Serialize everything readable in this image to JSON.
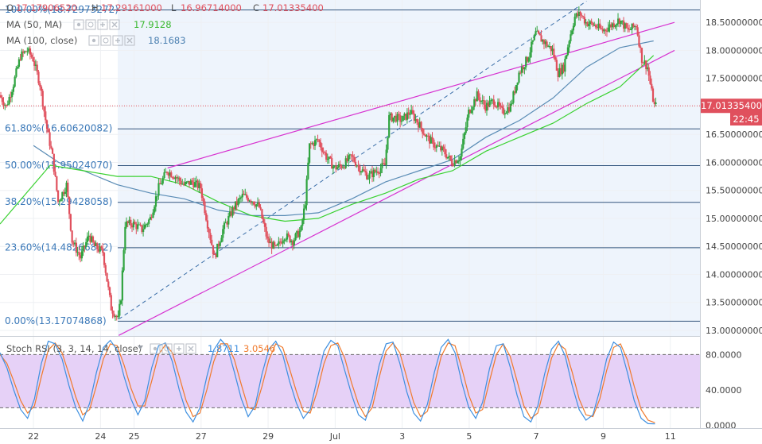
{
  "header": {
    "ohlc_prefix": "O",
    "open": "17.17906520",
    "high_prefix": "H",
    "high": "17.29161000",
    "low_prefix": "L",
    "low": "16.96714000",
    "close_prefix": "C",
    "close": "17.01335400",
    "ma50_label": "MA (50, MA)",
    "ma50_value": "17.9128",
    "ma100_label": "MA (100, close)",
    "ma100_value": "18.1683"
  },
  "fib_levels": [
    {
      "label": "100.00%(18.72973272)",
      "value": 18.7297
    },
    {
      "label": "61.80%(16.60620082)",
      "value": 16.6062
    },
    {
      "label": "50.00%(15.95024070)",
      "value": 15.9502
    },
    {
      "label": "38.20%(15.29428058)",
      "value": 15.2943
    },
    {
      "label": "23.60%(14.48266812)",
      "value": 14.4827
    },
    {
      "label": "0.00%(13.17074868)",
      "value": 13.1707
    }
  ],
  "price_badge": {
    "value": "17.01335400",
    "time": "22:45"
  },
  "rsi_header": {
    "label": "Stoch RSI (3, 3, 14, 14, close)",
    "k_value": "1.8711",
    "d_value": "3.0546"
  },
  "colors": {
    "up": "#2fa33f",
    "down": "#e0505d",
    "ma50": "#39d12f",
    "ma100": "#5a8cb5",
    "channel": "#d732d0",
    "fib": "#33557d",
    "rsi_k": "#3d8fe0",
    "rsi_d": "#f07a2c",
    "rsi_band": "#e6d1f7"
  },
  "chart_data": [
    {
      "type": "candlestick",
      "title": "",
      "ylim": [
        12.9,
        18.9
      ],
      "y_ticks": [
        "18.50000000",
        "18.00000000",
        "17.50000000",
        "17.00000000",
        "16.50000000",
        "16.00000000",
        "15.50000000",
        "15.00000000",
        "14.50000000",
        "14.00000000",
        "13.50000000",
        "13.00000000"
      ],
      "x_ticks": [
        "22",
        "24",
        "25",
        "27",
        "29",
        "Jul",
        "3",
        "5",
        "7",
        "9",
        "11"
      ],
      "x_tick_dates": [
        "2018-06-22",
        "2018-06-24",
        "2018-06-25",
        "2018-06-27",
        "2018-06-29",
        "2018-07-01",
        "2018-07-03",
        "2018-07-05",
        "2018-07-07",
        "2018-07-09",
        "2018-07-11"
      ],
      "x_domain": [
        "2018-06-21T00:00",
        "2018-07-11T03:00"
      ],
      "price_anchors": [
        [
          "2018-06-21T00:00",
          17.2
        ],
        [
          "2018-06-21T05:00",
          17.0
        ],
        [
          "2018-06-21T10:00",
          17.4
        ],
        [
          "2018-06-21T15:00",
          17.9
        ],
        [
          "2018-06-21T20:00",
          18.0
        ],
        [
          "2018-06-22T00:00",
          17.85
        ],
        [
          "2018-06-22T05:00",
          17.4
        ],
        [
          "2018-06-22T10:00",
          16.6
        ],
        [
          "2018-06-22T14:00",
          16.1
        ],
        [
          "2018-06-22T18:00",
          15.3
        ],
        [
          "2018-06-23T00:00",
          15.6
        ],
        [
          "2018-06-23T04:00",
          14.6
        ],
        [
          "2018-06-23T10:00",
          14.3
        ],
        [
          "2018-06-23T16:00",
          14.7
        ],
        [
          "2018-06-23T20:00",
          14.5
        ],
        [
          "2018-06-24T02:00",
          14.4
        ],
        [
          "2018-06-24T08:00",
          13.4
        ],
        [
          "2018-06-24T13:00",
          13.2
        ],
        [
          "2018-06-24T15:00",
          13.6
        ],
        [
          "2018-06-24T18:00",
          14.9
        ],
        [
          "2018-06-25T00:00",
          14.9
        ],
        [
          "2018-06-25T06:00",
          14.8
        ],
        [
          "2018-06-25T12:00",
          15.0
        ],
        [
          "2018-06-25T18:00",
          15.55
        ],
        [
          "2018-06-26T00:00",
          15.85
        ],
        [
          "2018-06-26T06:00",
          15.75
        ],
        [
          "2018-06-26T12:00",
          15.6
        ],
        [
          "2018-06-26T18:00",
          15.65
        ],
        [
          "2018-06-27T00:00",
          15.55
        ],
        [
          "2018-06-27T05:00",
          14.9
        ],
        [
          "2018-06-27T10:00",
          14.3
        ],
        [
          "2018-06-27T16:00",
          14.8
        ],
        [
          "2018-06-28T00:00",
          15.2
        ],
        [
          "2018-06-28T06:00",
          15.4
        ],
        [
          "2018-06-28T12:00",
          15.35
        ],
        [
          "2018-06-28T18:00",
          15.2
        ],
        [
          "2018-06-29T00:00",
          14.6
        ],
        [
          "2018-06-29T06:00",
          14.45
        ],
        [
          "2018-06-29T12:00",
          14.7
        ],
        [
          "2018-06-29T18:00",
          14.6
        ],
        [
          "2018-06-30T00:00",
          14.8
        ],
        [
          "2018-06-30T03:00",
          15.3
        ],
        [
          "2018-06-30T06:00",
          16.3
        ],
        [
          "2018-06-30T12:00",
          16.4
        ],
        [
          "2018-06-30T18:00",
          16.1
        ],
        [
          "2018-07-01T00:00",
          15.9
        ],
        [
          "2018-07-01T06:00",
          15.95
        ],
        [
          "2018-07-01T12:00",
          16.1
        ],
        [
          "2018-07-01T18:00",
          15.9
        ],
        [
          "2018-07-02T00:00",
          15.75
        ],
        [
          "2018-07-02T06:00",
          15.85
        ],
        [
          "2018-07-02T12:00",
          15.95
        ],
        [
          "2018-07-02T15:00",
          16.8
        ],
        [
          "2018-07-02T20:00",
          16.8
        ],
        [
          "2018-07-03T00:00",
          16.75
        ],
        [
          "2018-07-03T06:00",
          16.9
        ],
        [
          "2018-07-03T12:00",
          16.7
        ],
        [
          "2018-07-03T18:00",
          16.45
        ],
        [
          "2018-07-04T00:00",
          16.3
        ],
        [
          "2018-07-04T06:00",
          16.2
        ],
        [
          "2018-07-04T12:00",
          16.0
        ],
        [
          "2018-07-04T18:00",
          16.1
        ],
        [
          "2018-07-05T00:00",
          16.9
        ],
        [
          "2018-07-05T06:00",
          17.2
        ],
        [
          "2018-07-05T12:00",
          17.0
        ],
        [
          "2018-07-05T18:00",
          17.1
        ],
        [
          "2018-07-06T00:00",
          16.9
        ],
        [
          "2018-07-06T06:00",
          17.0
        ],
        [
          "2018-07-06T12:00",
          17.6
        ],
        [
          "2018-07-06T18:00",
          17.85
        ],
        [
          "2018-07-07T00:00",
          18.3
        ],
        [
          "2018-07-07T06:00",
          18.15
        ],
        [
          "2018-07-07T12:00",
          18.0
        ],
        [
          "2018-07-07T16:00",
          17.6
        ],
        [
          "2018-07-07T20:00",
          17.7
        ],
        [
          "2018-07-08T00:00",
          18.2
        ],
        [
          "2018-07-08T04:00",
          18.6
        ],
        [
          "2018-07-08T08:00",
          18.65
        ],
        [
          "2018-07-08T12:00",
          18.5
        ],
        [
          "2018-07-08T18:00",
          18.45
        ],
        [
          "2018-07-09T00:00",
          18.35
        ],
        [
          "2018-07-09T06:00",
          18.45
        ],
        [
          "2018-07-09T12:00",
          18.55
        ],
        [
          "2018-07-09T18:00",
          18.35
        ],
        [
          "2018-07-10T00:00",
          18.45
        ],
        [
          "2018-07-10T04:00",
          17.85
        ],
        [
          "2018-07-10T08:00",
          17.7
        ],
        [
          "2018-07-10T11:00",
          17.25
        ],
        [
          "2018-07-10T13:00",
          17.01
        ]
      ],
      "channel_upper": [
        [
          "2018-06-26T00:00",
          15.9
        ],
        [
          "2018-07-11T03:00",
          18.5
        ]
      ],
      "channel_lower": [
        [
          "2018-06-24T13:00",
          12.91
        ],
        [
          "2018-07-11T03:00",
          18.0
        ]
      ],
      "channel_mid_dashed": [
        [
          "2018-06-24T13:00",
          13.2
        ],
        [
          "2018-07-08T12:00",
          18.88
        ]
      ],
      "ma50": [
        [
          "2018-06-21T00:00",
          14.9
        ],
        [
          "2018-06-22T00:00",
          15.6
        ],
        [
          "2018-06-22T12:00",
          15.95
        ],
        [
          "2018-06-23T12:00",
          15.85
        ],
        [
          "2018-06-24T12:00",
          15.75
        ],
        [
          "2018-06-25T12:00",
          15.75
        ],
        [
          "2018-06-26T12:00",
          15.6
        ],
        [
          "2018-06-27T12:00",
          15.3
        ],
        [
          "2018-06-28T12:00",
          15.05
        ],
        [
          "2018-06-29T12:00",
          14.95
        ],
        [
          "2018-06-30T12:00",
          15.0
        ],
        [
          "2018-07-01T12:00",
          15.25
        ],
        [
          "2018-07-02T12:00",
          15.45
        ],
        [
          "2018-07-03T12:00",
          15.7
        ],
        [
          "2018-07-04T12:00",
          15.85
        ],
        [
          "2018-07-05T12:00",
          16.2
        ],
        [
          "2018-07-06T12:00",
          16.45
        ],
        [
          "2018-07-07T12:00",
          16.7
        ],
        [
          "2018-07-08T12:00",
          17.05
        ],
        [
          "2018-07-09T12:00",
          17.35
        ],
        [
          "2018-07-10T12:00",
          17.91
        ]
      ],
      "ma100": [
        [
          "2018-06-22T00:00",
          16.3
        ],
        [
          "2018-06-22T18:00",
          16.0
        ],
        [
          "2018-06-23T12:00",
          15.85
        ],
        [
          "2018-06-24T12:00",
          15.6
        ],
        [
          "2018-06-25T12:00",
          15.45
        ],
        [
          "2018-06-26T12:00",
          15.35
        ],
        [
          "2018-06-27T12:00",
          15.15
        ],
        [
          "2018-06-28T12:00",
          15.05
        ],
        [
          "2018-06-29T12:00",
          15.05
        ],
        [
          "2018-06-30T12:00",
          15.1
        ],
        [
          "2018-07-01T12:00",
          15.35
        ],
        [
          "2018-07-02T12:00",
          15.65
        ],
        [
          "2018-07-03T12:00",
          15.85
        ],
        [
          "2018-07-04T12:00",
          16.05
        ],
        [
          "2018-07-05T12:00",
          16.45
        ],
        [
          "2018-07-06T12:00",
          16.75
        ],
        [
          "2018-07-07T12:00",
          17.15
        ],
        [
          "2018-07-08T12:00",
          17.7
        ],
        [
          "2018-07-09T12:00",
          18.05
        ],
        [
          "2018-07-10T12:00",
          18.17
        ]
      ]
    },
    {
      "type": "line",
      "title": "Stoch RSI (3, 3, 14, 14, close)",
      "ylim": [
        -3,
        100
      ],
      "y_ticks": [
        "80.0000",
        "40.0000",
        "0.0000"
      ],
      "band": [
        20,
        80
      ],
      "series": [
        {
          "name": "%K",
          "values": [
            82,
            65,
            40,
            18,
            8,
            30,
            70,
            95,
            92,
            75,
            45,
            20,
            5,
            25,
            60,
            88,
            96,
            85,
            55,
            30,
            12,
            28,
            65,
            90,
            93,
            72,
            40,
            15,
            4,
            20,
            55,
            85,
            97,
            88,
            60,
            30,
            10,
            22,
            58,
            86,
            95,
            80,
            50,
            25,
            8,
            18,
            52,
            84,
            96,
            90,
            62,
            35,
            12,
            6,
            30,
            68,
            92,
            94,
            70,
            38,
            14,
            5,
            24,
            60,
            88,
            97,
            82,
            48,
            20,
            8,
            26,
            64,
            90,
            92,
            66,
            34,
            10,
            4,
            22,
            58,
            86,
            95,
            78,
            45,
            18,
            6,
            12,
            40,
            75,
            94,
            88,
            60,
            28,
            8,
            2,
            1.87
          ]
        },
        {
          "name": "%D",
          "values": [
            80,
            70,
            50,
            28,
            14,
            22,
            55,
            85,
            93,
            82,
            58,
            32,
            12,
            18,
            45,
            75,
            92,
            90,
            68,
            42,
            22,
            22,
            50,
            80,
            91,
            82,
            55,
            28,
            10,
            14,
            40,
            72,
            92,
            92,
            74,
            46,
            20,
            18,
            44,
            74,
            92,
            88,
            64,
            38,
            16,
            14,
            38,
            70,
            90,
            93,
            76,
            48,
            24,
            10,
            20,
            54,
            84,
            93,
            82,
            54,
            26,
            10,
            16,
            46,
            78,
            93,
            90,
            64,
            34,
            14,
            18,
            50,
            80,
            92,
            78,
            50,
            22,
            8,
            14,
            44,
            76,
            92,
            86,
            60,
            30,
            12,
            10,
            30,
            62,
            88,
            92,
            74,
            44,
            18,
            6,
            3.05
          ]
        }
      ]
    }
  ]
}
